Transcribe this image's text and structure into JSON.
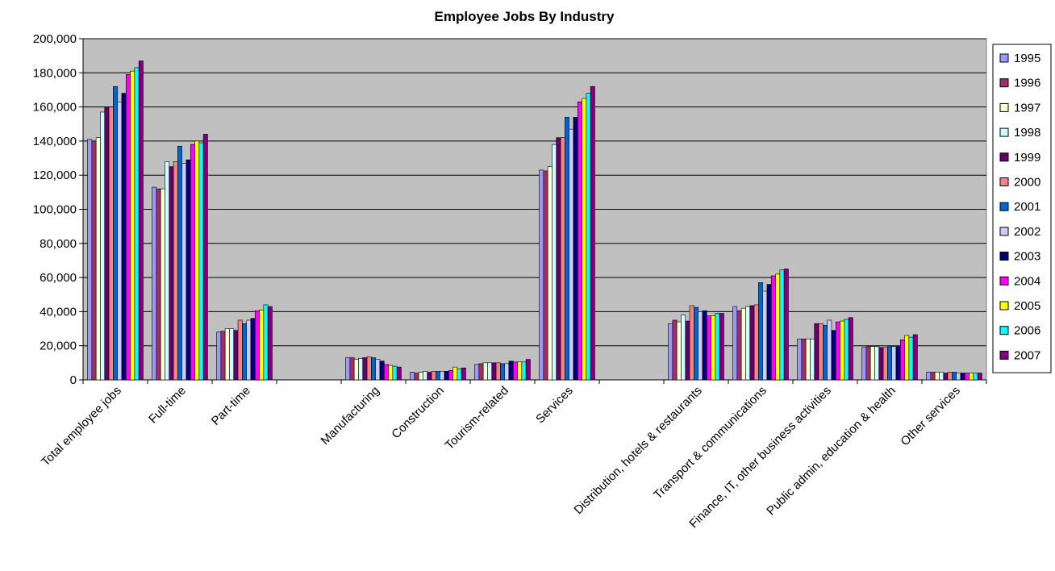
{
  "chart_data": {
    "type": "bar",
    "title": "Employee Jobs By Industry",
    "xlabel": "",
    "ylabel": "",
    "ylim": [
      0,
      200000
    ],
    "yticks": [
      0,
      20000,
      40000,
      60000,
      80000,
      100000,
      120000,
      140000,
      160000,
      180000,
      200000
    ],
    "ytick_labels": [
      "0",
      "20,000",
      "40,000",
      "60,000",
      "80,000",
      "100,000",
      "120,000",
      "140,000",
      "160,000",
      "180,000",
      "200,000"
    ],
    "grid": true,
    "plot_background": "#c0c0c0",
    "legend_position": "right",
    "categories": [
      "Total employee jobs",
      "Full-time",
      "Part-time",
      "",
      "Manufacturing",
      "Construction",
      "Tourism-related",
      "Services",
      "",
      "Distribution, hotels & restaurants",
      "Transport & communications",
      "Finance, IT, other business activities",
      "Public admin, education & health",
      "Other services"
    ],
    "series": [
      {
        "name": "1995",
        "color": "#9999ff",
        "values": [
          141000,
          113000,
          28000,
          null,
          13000,
          4500,
          9000,
          123000,
          null,
          33000,
          43000,
          24000,
          19000,
          4500
        ]
      },
      {
        "name": "1996",
        "color": "#993366",
        "values": [
          140000,
          112000,
          28500,
          null,
          13000,
          4000,
          9500,
          122500,
          null,
          35000,
          40500,
          24000,
          19500,
          4500
        ]
      },
      {
        "name": "1997",
        "color": "#ffffcc",
        "values": [
          142000,
          112000,
          30000,
          null,
          12000,
          4500,
          10000,
          125000,
          null,
          34000,
          42000,
          24000,
          19500,
          4500
        ]
      },
      {
        "name": "1998",
        "color": "#ccffff",
        "values": [
          157000,
          128000,
          30000,
          null,
          12500,
          5000,
          10000,
          138000,
          null,
          38000,
          43000,
          24000,
          19500,
          4500
        ]
      },
      {
        "name": "1999",
        "color": "#660066",
        "values": [
          160000,
          125000,
          29000,
          null,
          13000,
          4500,
          10000,
          142000,
          null,
          34500,
          43500,
          33000,
          19000,
          4000
        ]
      },
      {
        "name": "2000",
        "color": "#ff8080",
        "values": [
          160000,
          128000,
          35000,
          null,
          13500,
          5000,
          10000,
          142000,
          null,
          43500,
          44000,
          33000,
          19000,
          4500
        ]
      },
      {
        "name": "2001",
        "color": "#0066cc",
        "values": [
          172000,
          137000,
          33000,
          null,
          13000,
          5000,
          9500,
          154000,
          null,
          42500,
          57000,
          32000,
          19500,
          4500
        ]
      },
      {
        "name": "2002",
        "color": "#ccccff",
        "values": [
          163000,
          127000,
          35000,
          null,
          12000,
          5000,
          9500,
          147000,
          null,
          40000,
          52000,
          35000,
          19500,
          4000
        ]
      },
      {
        "name": "2003",
        "color": "#000080",
        "values": [
          168000,
          129000,
          36000,
          null,
          11000,
          5000,
          11000,
          154000,
          null,
          40500,
          56000,
          29000,
          19500,
          4000
        ]
      },
      {
        "name": "2004",
        "color": "#ff00ff",
        "values": [
          179000,
          138000,
          40500,
          null,
          9000,
          5500,
          10500,
          163000,
          null,
          37500,
          61000,
          34000,
          23500,
          4000
        ]
      },
      {
        "name": "2005",
        "color": "#ffff00",
        "values": [
          181000,
          140000,
          41000,
          null,
          8500,
          7500,
          10500,
          165000,
          null,
          37500,
          62000,
          34500,
          26000,
          4000
        ]
      },
      {
        "name": "2006",
        "color": "#00ffff",
        "values": [
          183000,
          139000,
          44000,
          null,
          8000,
          6500,
          10500,
          168000,
          null,
          39000,
          64500,
          35500,
          25000,
          4000
        ]
      },
      {
        "name": "2007",
        "color": "#800080",
        "values": [
          187000,
          144000,
          43000,
          null,
          7500,
          7000,
          12000,
          172000,
          null,
          39000,
          65000,
          36500,
          26500,
          4000
        ]
      }
    ]
  }
}
